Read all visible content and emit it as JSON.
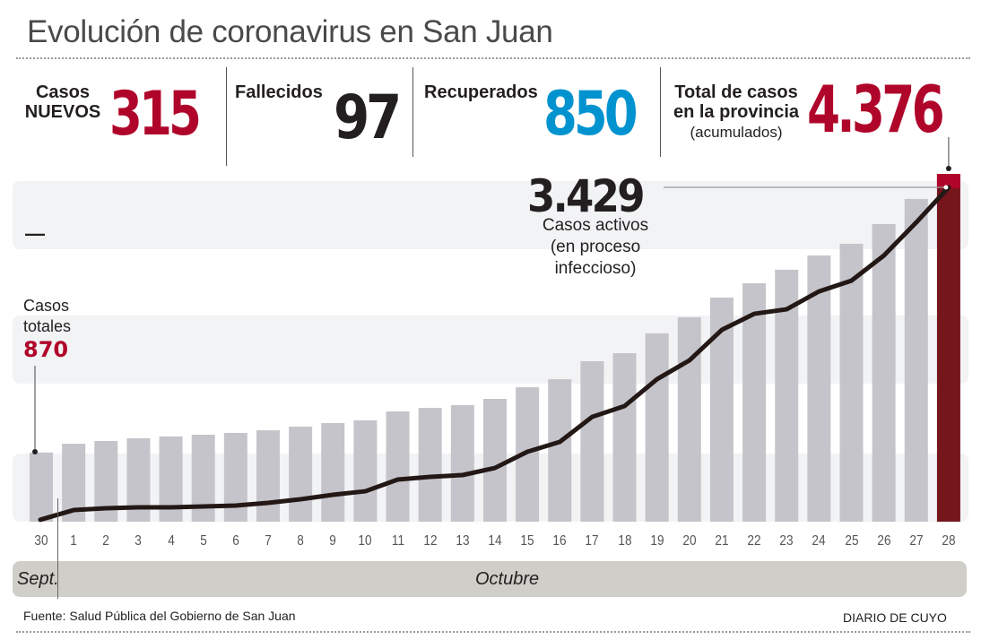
{
  "header": {
    "title": "Evolución de coronavirus en San Juan"
  },
  "stats": {
    "new_cases": {
      "label_line1": "Casos",
      "label_line2": "NUEVOS",
      "value": "315",
      "color": "#b0052a"
    },
    "deaths": {
      "label": "Fallecidos",
      "value": "97",
      "color": "#231f20"
    },
    "recovered": {
      "label": "Recuperados",
      "value": "850",
      "color": "#0093d0"
    },
    "total": {
      "label_line1": "Total de casos",
      "label_line2": "en la provincia",
      "label_line3": "(acumulados)",
      "value": "4.376",
      "color": "#b0052a"
    }
  },
  "annotations": {
    "active_value": "3.429",
    "active_line1": "Casos activos",
    "active_line2": "(en proceso",
    "active_line3": "infeccioso)",
    "start_line1": "Casos",
    "start_line2": "totales",
    "start_value": "870",
    "legend_dash": "—"
  },
  "months": {
    "first": "Sept.",
    "second": "Octubre"
  },
  "footer": {
    "source": "Fuente: Salud Pública del Gobierno de San Juan",
    "brand": "DIARIO DE CUYO"
  },
  "colors": {
    "bar": "#c5c4ca",
    "bar_highlight": "#75151c",
    "bar_highlight_cap": "#b0052a",
    "line": "#231815",
    "band": "#f2f3f5",
    "month_band": "#cfcec8"
  },
  "chart_data": {
    "type": "bar",
    "title": "Evolución de coronavirus en San Juan",
    "xlabel": "",
    "ylabel": "",
    "categories": [
      "30",
      "1",
      "2",
      "3",
      "4",
      "5",
      "6",
      "7",
      "8",
      "9",
      "10",
      "11",
      "12",
      "13",
      "14",
      "15",
      "16",
      "17",
      "18",
      "19",
      "20",
      "21",
      "22",
      "23",
      "24",
      "25",
      "26",
      "27",
      "28"
    ],
    "series": [
      {
        "name": "Casos totales (acumulados)",
        "type": "bar",
        "values": [
          870,
          981,
          1015,
          1049,
          1072,
          1094,
          1117,
          1150,
          1196,
          1241,
          1275,
          1387,
          1432,
          1466,
          1545,
          1692,
          1793,
          2019,
          2120,
          2369,
          2572,
          2820,
          3000,
          3170,
          3350,
          3497,
          3745,
          4061,
          4376
        ]
      },
      {
        "name": "Casos activos (en proceso infeccioso)",
        "type": "line",
        "values": [
          20,
          119,
          138,
          147,
          147,
          156,
          165,
          193,
          230,
          276,
          312,
          432,
          460,
          478,
          551,
          717,
          818,
          1075,
          1186,
          1461,
          1654,
          1967,
          2132,
          2178,
          2362,
          2472,
          2729,
          3069,
          3429
        ]
      }
    ],
    "ylim_bars": [
      0,
      4376
    ],
    "ylim_line": [
      0,
      3429
    ],
    "grid": false,
    "month_groups": [
      {
        "label": "Sept.",
        "from": "30",
        "to": "30"
      },
      {
        "label": "Octubre",
        "from": "1",
        "to": "28"
      }
    ],
    "highlight_category": "28"
  }
}
